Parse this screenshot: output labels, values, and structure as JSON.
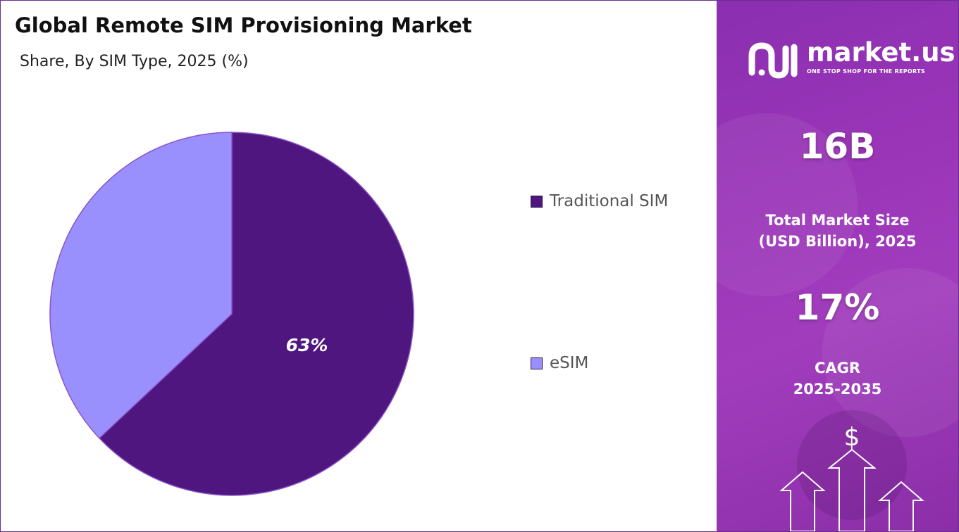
{
  "chart_data": {
    "type": "pie",
    "title": "Global Remote SIM Provisioning Market",
    "subtitle": "Share, By SIM Type, 2025 (%)",
    "categories": [
      "Traditional SIM",
      "eSIM"
    ],
    "values": [
      63,
      37
    ],
    "data_labels": [
      "63%",
      ""
    ],
    "colors": [
      "#4f1680",
      "#9990fe"
    ],
    "legend_placement": "right"
  },
  "sidebar": {
    "logo": {
      "name": "market.us",
      "tagline": "ONE STOP SHOP FOR THE REPORTS"
    },
    "market_size": {
      "value": "16B",
      "label_line1": "Total Market Size",
      "label_line2": "(USD Billion), 2025"
    },
    "cagr": {
      "value": "17%",
      "label_line1": "CAGR",
      "label_line2": "2025-2035"
    },
    "decoration_icon": "dollar-arrows-icon"
  }
}
